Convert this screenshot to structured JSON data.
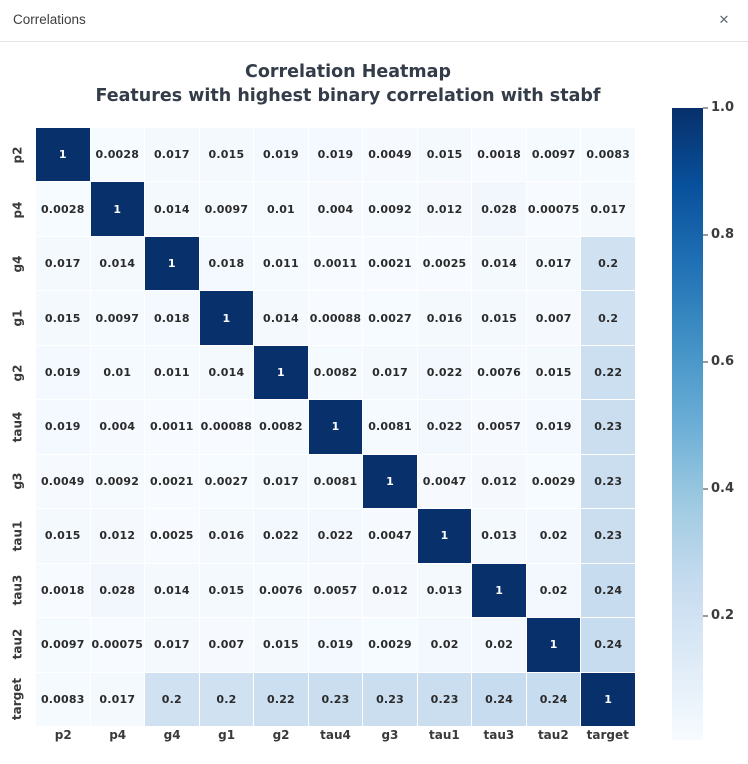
{
  "window": {
    "title": "Correlations",
    "close_icon": "✕"
  },
  "chart_data": {
    "type": "heatmap",
    "title": "Correlation Heatmap",
    "subtitle": "Features with highest binary correlation with stabf",
    "labels": [
      "p2",
      "p4",
      "g4",
      "g1",
      "g2",
      "tau4",
      "g3",
      "tau1",
      "tau3",
      "tau2",
      "target"
    ],
    "matrix": [
      [
        "1",
        "0.0028",
        "0.017",
        "0.015",
        "0.019",
        "0.019",
        "0.0049",
        "0.015",
        "0.0018",
        "0.0097",
        "0.0083"
      ],
      [
        "0.0028",
        "1",
        "0.014",
        "0.0097",
        "0.01",
        "0.004",
        "0.0092",
        "0.012",
        "0.028",
        "0.00075",
        "0.017"
      ],
      [
        "0.017",
        "0.014",
        "1",
        "0.018",
        "0.011",
        "0.0011",
        "0.0021",
        "0.0025",
        "0.014",
        "0.017",
        "0.2"
      ],
      [
        "0.015",
        "0.0097",
        "0.018",
        "1",
        "0.014",
        "0.00088",
        "0.0027",
        "0.016",
        "0.015",
        "0.007",
        "0.2"
      ],
      [
        "0.019",
        "0.01",
        "0.011",
        "0.014",
        "1",
        "0.0082",
        "0.017",
        "0.022",
        "0.0076",
        "0.015",
        "0.22"
      ],
      [
        "0.019",
        "0.004",
        "0.0011",
        "0.00088",
        "0.0082",
        "1",
        "0.0081",
        "0.022",
        "0.0057",
        "0.019",
        "0.23"
      ],
      [
        "0.0049",
        "0.0092",
        "0.0021",
        "0.0027",
        "0.017",
        "0.0081",
        "1",
        "0.0047",
        "0.012",
        "0.0029",
        "0.23"
      ],
      [
        "0.015",
        "0.012",
        "0.0025",
        "0.016",
        "0.022",
        "0.022",
        "0.0047",
        "1",
        "0.013",
        "0.02",
        "0.23"
      ],
      [
        "0.0018",
        "0.028",
        "0.014",
        "0.015",
        "0.0076",
        "0.0057",
        "0.012",
        "0.013",
        "1",
        "0.02",
        "0.24"
      ],
      [
        "0.0097",
        "0.00075",
        "0.017",
        "0.007",
        "0.015",
        "0.019",
        "0.0029",
        "0.02",
        "0.02",
        "1",
        "0.24"
      ],
      [
        "0.0083",
        "0.017",
        "0.2",
        "0.2",
        "0.22",
        "0.23",
        "0.23",
        "0.23",
        "0.24",
        "0.24",
        "1"
      ]
    ],
    "vmin": 0,
    "vmax": 1,
    "colorbar": {
      "tick_labels": [
        "1.0",
        "0.8",
        "0.6",
        "0.4",
        "0.2"
      ],
      "tick_values": [
        1.0,
        0.8,
        0.6,
        0.4,
        0.2
      ]
    },
    "colorscale": {
      "name": "Blues",
      "anchors": [
        "#f7fbff",
        "#deebf7",
        "#c6dbef",
        "#9ecae1",
        "#6baed6",
        "#4292c6",
        "#2171b5",
        "#08519c",
        "#08306b"
      ]
    },
    "annotation_text_colors": {
      "on_light": "#2b2b2b",
      "on_dark": "#ffffff"
    },
    "title_color": "#333c48"
  }
}
